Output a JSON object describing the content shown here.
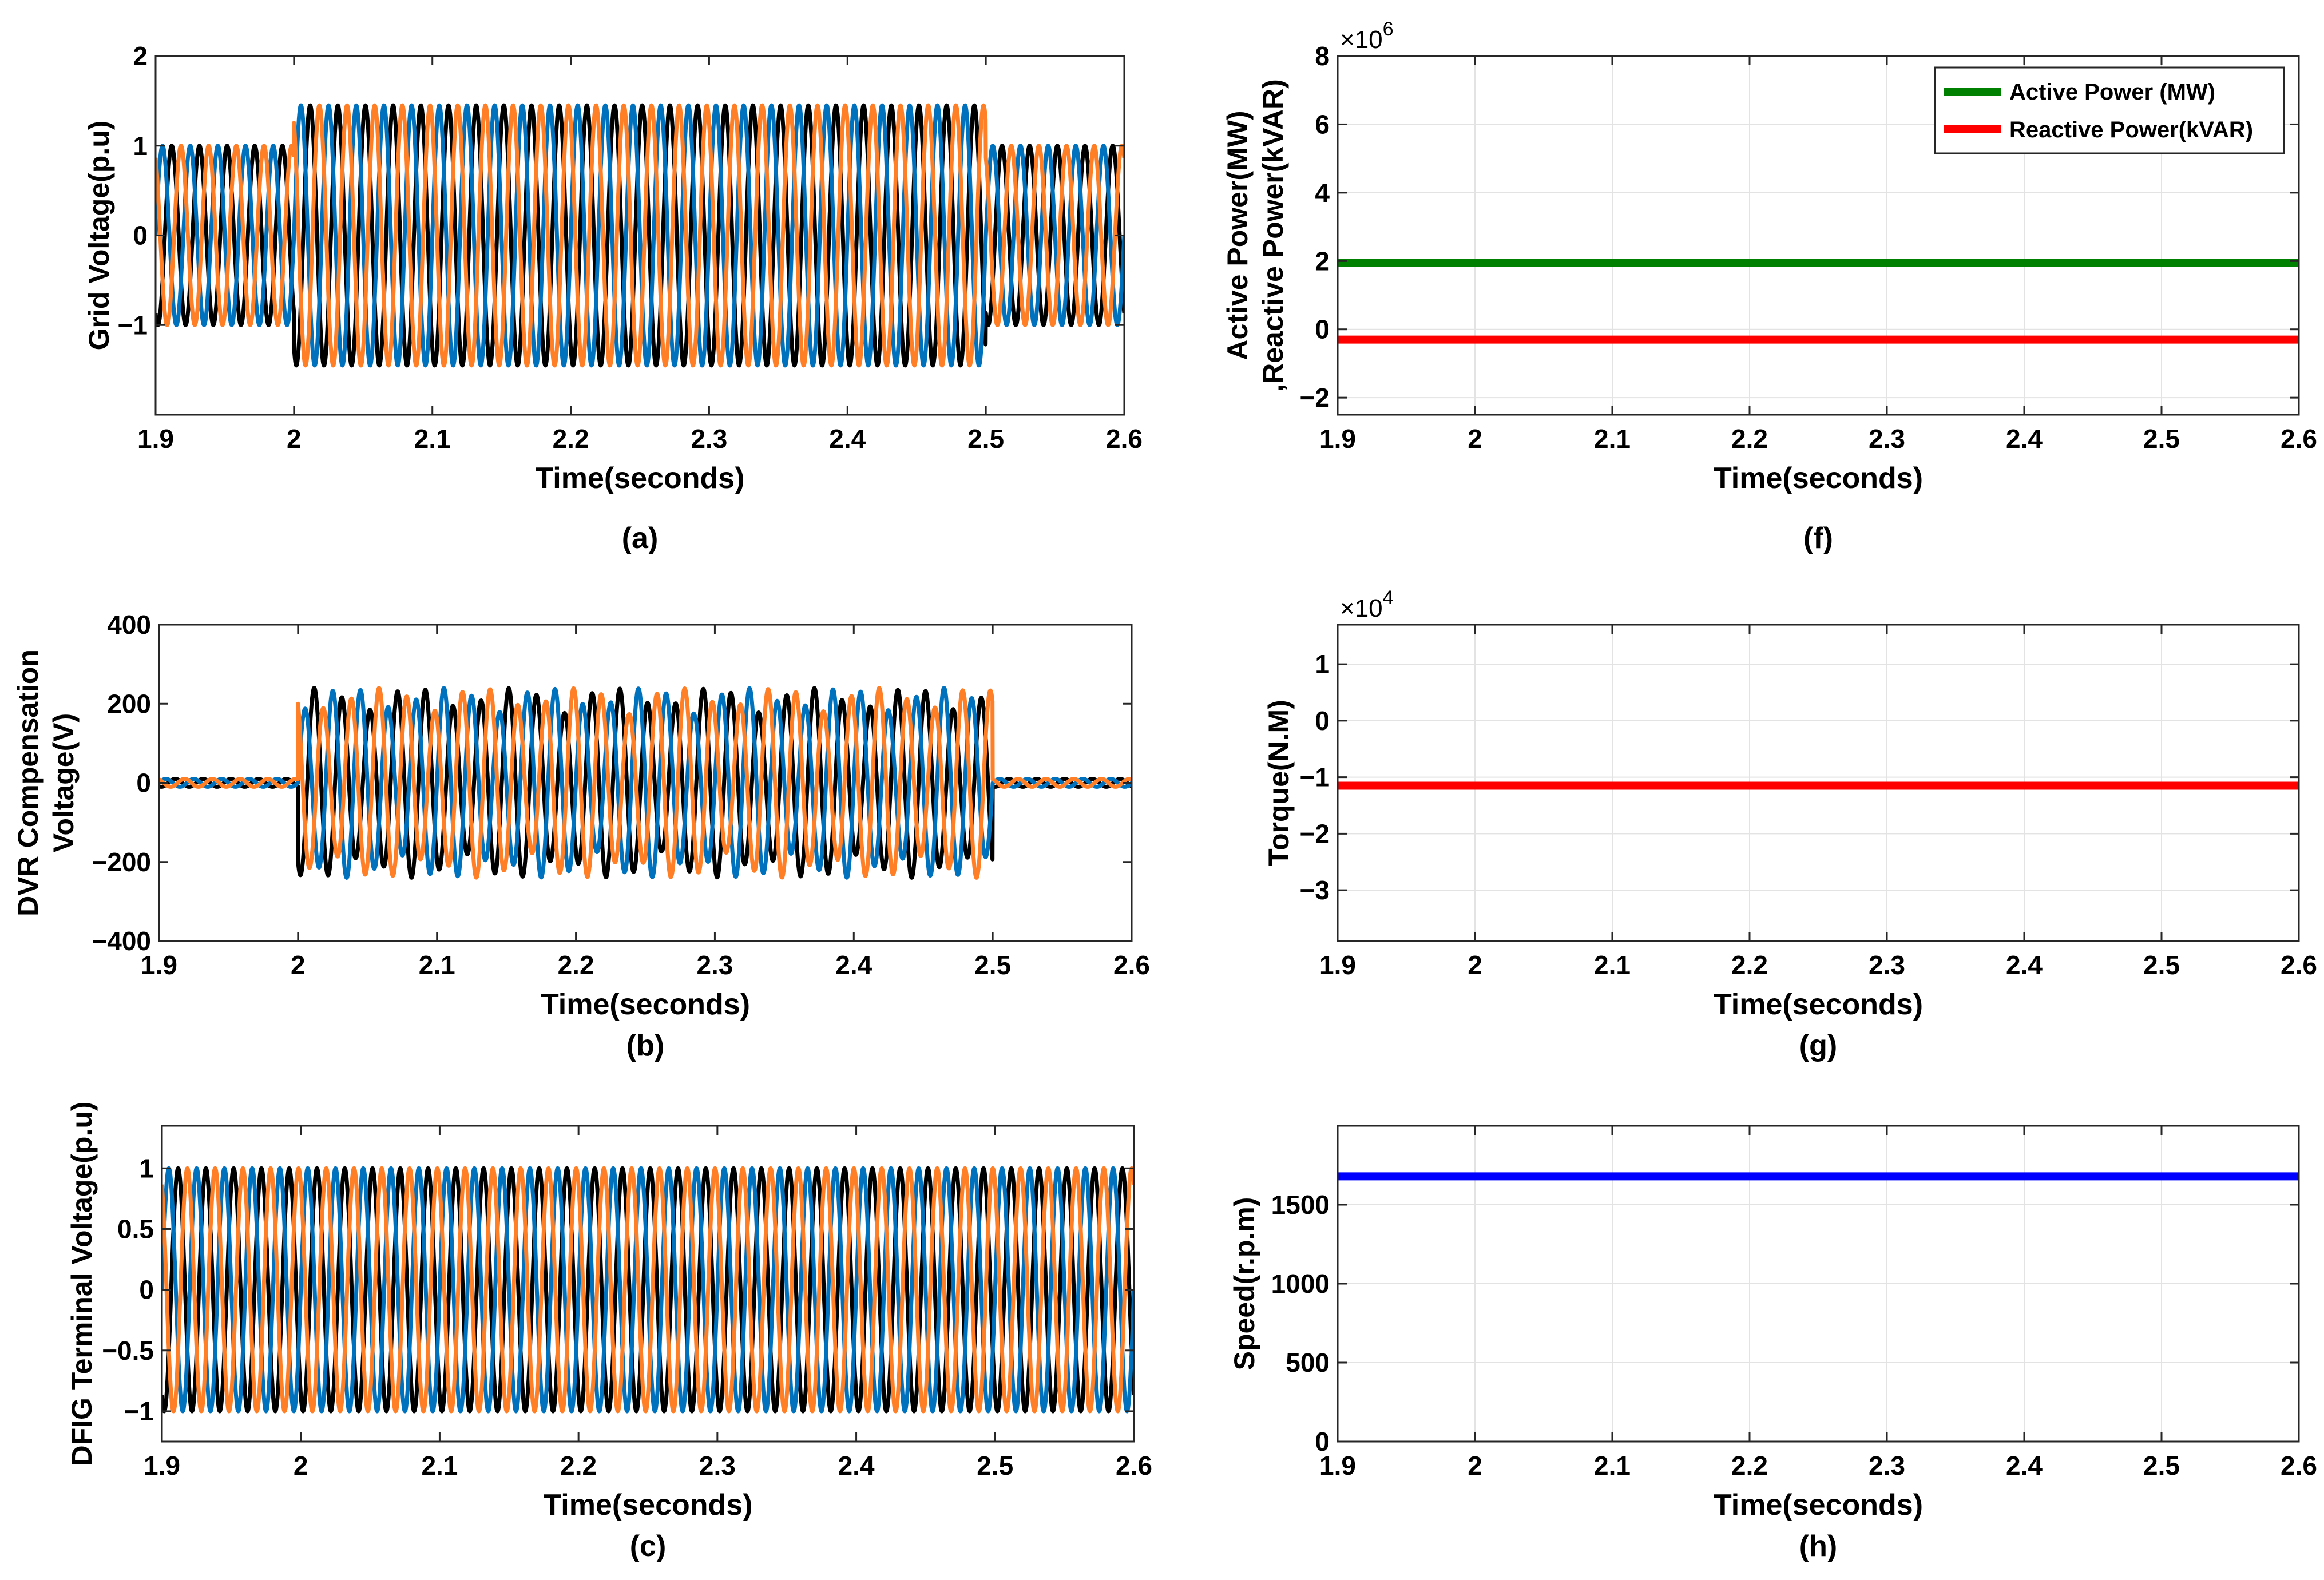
{
  "colors": {
    "phase_a": "#0072bd",
    "phase_b": "#000000",
    "phase_c": "#ff7f27",
    "active": "#008000",
    "reactive": "#ff0000",
    "torque": "#ff0000",
    "speed": "#0000ff"
  },
  "chart_data": [
    {
      "id": "a",
      "type": "line",
      "caption": "(a)",
      "xlabel": "Time(seconds)",
      "ylabel": "Grid Voltage(p.u)",
      "xlim": [
        1.9,
        2.6
      ],
      "ylim": [
        -2,
        2
      ],
      "xticks": [
        1.9,
        2.0,
        2.1,
        2.2,
        2.3,
        2.4,
        2.5,
        2.6
      ],
      "xtick_labels": [
        "1.9",
        "2",
        "2.1",
        "2.2",
        "2.3",
        "2.4",
        "2.5",
        "2.6"
      ],
      "yticks": [
        -1,
        0,
        1,
        2
      ],
      "ytick_labels": [
        "−1",
        "0",
        "1",
        "2"
      ],
      "grid": false,
      "series": [
        {
          "kind": "sine3",
          "frequency_hz": 50,
          "amplitude_normal": 1.0,
          "amplitude_event": 1.45,
          "event_start": 2.0,
          "event_end": 2.5
        }
      ]
    },
    {
      "id": "b",
      "type": "line",
      "caption": "(b)",
      "xlabel": "Time(seconds)",
      "ylabel_lines": [
        "DVR Compensation",
        "Voltage(V)"
      ],
      "xlim": [
        1.9,
        2.6
      ],
      "ylim": [
        -400,
        400
      ],
      "xticks": [
        1.9,
        2.0,
        2.1,
        2.2,
        2.3,
        2.4,
        2.5,
        2.6
      ],
      "xtick_labels": [
        "1.9",
        "2",
        "2.1",
        "2.2",
        "2.3",
        "2.4",
        "2.5",
        "2.6"
      ],
      "yticks": [
        -400,
        -200,
        0,
        200,
        400
      ],
      "ytick_labels": [
        "−400",
        "−200",
        "0",
        "200",
        "400"
      ],
      "grid": false,
      "series": [
        {
          "kind": "sine3",
          "frequency_hz": 50,
          "amplitude_normal": 10,
          "amplitude_event": 240,
          "event_start": 2.0,
          "event_end": 2.5
        }
      ]
    },
    {
      "id": "c",
      "type": "line",
      "caption": "(c)",
      "xlabel": "Time(seconds)",
      "ylabel": "DFIG Terminal Voltage(p.u)",
      "xlim": [
        1.9,
        2.6
      ],
      "ylim": [
        -1.25,
        1.35
      ],
      "xticks": [
        1.9,
        2.0,
        2.1,
        2.2,
        2.3,
        2.4,
        2.5,
        2.6
      ],
      "xtick_labels": [
        "1.9",
        "2",
        "2.1",
        "2.2",
        "2.3",
        "2.4",
        "2.5",
        "2.6"
      ],
      "yticks": [
        -1,
        -0.5,
        0,
        0.5,
        1
      ],
      "ytick_labels": [
        "−1",
        "−0.5",
        "0",
        "0.5",
        "1"
      ],
      "grid": false,
      "series": [
        {
          "kind": "sine3",
          "frequency_hz": 50,
          "amplitude_normal": 1.0,
          "amplitude_event": 1.0,
          "event_start": 2.0,
          "event_end": 2.5
        }
      ]
    },
    {
      "id": "f",
      "type": "line",
      "caption": "(f)",
      "xlabel": "Time(seconds)",
      "ylabel_lines": [
        "Active Power(MW)",
        ",Reactive Power(kVAR)"
      ],
      "xlim": [
        1.9,
        2.6
      ],
      "ylim": [
        -2.5,
        8
      ],
      "multiplier_label": "×10",
      "multiplier_exp": "6",
      "xticks": [
        1.9,
        2.0,
        2.1,
        2.2,
        2.3,
        2.4,
        2.5,
        2.6
      ],
      "xtick_labels": [
        "1.9",
        "2",
        "2.1",
        "2.2",
        "2.3",
        "2.4",
        "2.5",
        "2.6"
      ],
      "yticks": [
        -2,
        0,
        2,
        4,
        6,
        8
      ],
      "ytick_labels": [
        "−2",
        "0",
        "2",
        "4",
        "6",
        "8"
      ],
      "grid": true,
      "legend_position": "top-right",
      "series": [
        {
          "kind": "const",
          "name": "Active Power (MW)",
          "value": 1.95,
          "color_key": "active"
        },
        {
          "kind": "const",
          "name": "Reactive Power(kVAR)",
          "value": -0.3,
          "color_key": "reactive"
        }
      ]
    },
    {
      "id": "g",
      "type": "line",
      "caption": "(g)",
      "xlabel": "Time(seconds)",
      "ylabel": "Torque(N.M)",
      "xlim": [
        1.9,
        2.6
      ],
      "ylim": [
        -3.9,
        1.7
      ],
      "multiplier_label": "×10",
      "multiplier_exp": "4",
      "xticks": [
        1.9,
        2.0,
        2.1,
        2.2,
        2.3,
        2.4,
        2.5,
        2.6
      ],
      "xtick_labels": [
        "1.9",
        "2",
        "2.1",
        "2.2",
        "2.3",
        "2.4",
        "2.5",
        "2.6"
      ],
      "yticks": [
        -3,
        -2,
        -1,
        0,
        1
      ],
      "ytick_labels": [
        "−3",
        "−2",
        "−1",
        "0",
        "1"
      ],
      "grid": true,
      "series": [
        {
          "kind": "const",
          "value": -1.15,
          "color_key": "torque"
        }
      ]
    },
    {
      "id": "h",
      "type": "line",
      "caption": "(h)",
      "xlabel": "Time(seconds)",
      "ylabel": "Speed(r.p.m)",
      "xlim": [
        1.9,
        2.6
      ],
      "ylim": [
        0,
        2000
      ],
      "xticks": [
        1.9,
        2.0,
        2.1,
        2.2,
        2.3,
        2.4,
        2.5,
        2.6
      ],
      "xtick_labels": [
        "1.9",
        "2",
        "2.1",
        "2.2",
        "2.3",
        "2.4",
        "2.5",
        "2.6"
      ],
      "yticks": [
        0,
        500,
        1000,
        1500
      ],
      "ytick_labels": [
        "0",
        "500",
        "1000",
        "1500"
      ],
      "grid": true,
      "series": [
        {
          "kind": "const",
          "value": 1680,
          "color_key": "speed"
        }
      ]
    }
  ]
}
